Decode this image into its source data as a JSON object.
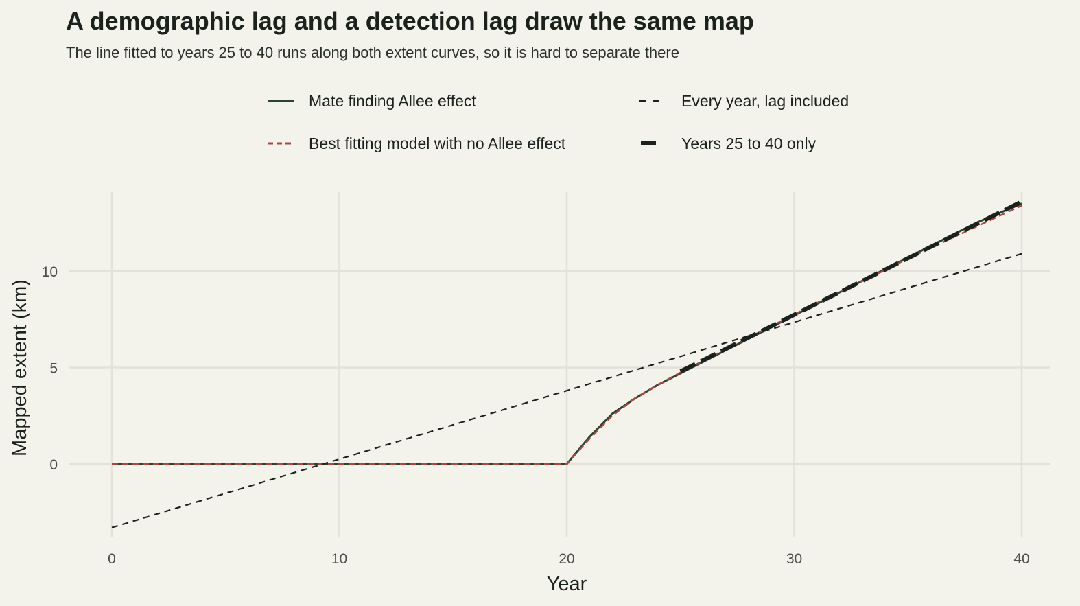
{
  "chart_data": {
    "type": "line",
    "title": "A demographic lag and a detection lag draw the same map",
    "subtitle": "The line fitted to years 25 to 40 runs along both extent curves, so it is hard to separate there",
    "xlabel": "Year",
    "ylabel": "Mapped extent (km)",
    "xlim": [
      -2,
      41
    ],
    "ylim": [
      -4,
      14
    ],
    "xticks": [
      0,
      10,
      20,
      30,
      40
    ],
    "yticks": [
      0,
      5,
      10
    ],
    "grid": true,
    "legend_position": "top",
    "series": [
      {
        "name": "Mate finding Allee effect",
        "style": "solid",
        "color": "#2a4434",
        "x": [
          0,
          20,
          21,
          22,
          23,
          24,
          25,
          26,
          27,
          28,
          29,
          30,
          31,
          32,
          33,
          34,
          35,
          36,
          37,
          38,
          39,
          40
        ],
        "y": [
          0,
          0,
          1.4,
          2.6,
          3.4,
          4.1,
          4.7,
          5.3,
          5.9,
          6.5,
          7.1,
          7.7,
          8.3,
          8.9,
          9.5,
          10.1,
          10.7,
          11.3,
          11.9,
          12.5,
          13.0,
          13.5
        ]
      },
      {
        "name": "Best fitting model with no Allee effect",
        "style": "dashed",
        "color": "#b5453c",
        "x": [
          0,
          20,
          21,
          22,
          23,
          24,
          25,
          26,
          27,
          28,
          29,
          30,
          31,
          32,
          33,
          34,
          35,
          36,
          37,
          38,
          39,
          40
        ],
        "y": [
          0,
          0,
          1.3,
          2.5,
          3.4,
          4.1,
          4.75,
          5.35,
          5.95,
          6.55,
          7.15,
          7.75,
          8.35,
          8.95,
          9.5,
          10.05,
          10.65,
          11.2,
          11.75,
          12.3,
          12.85,
          13.4
        ]
      },
      {
        "name": "Every year, lag included",
        "style": "dashed",
        "color": "#1b221d",
        "x": [
          0,
          40
        ],
        "y": [
          -3.3,
          10.9
        ]
      },
      {
        "name": "Years 25 to 40 only",
        "style": "bold-dashed",
        "color": "#1b221d",
        "x": [
          25,
          40
        ],
        "y": [
          4.8,
          13.6
        ]
      }
    ]
  }
}
